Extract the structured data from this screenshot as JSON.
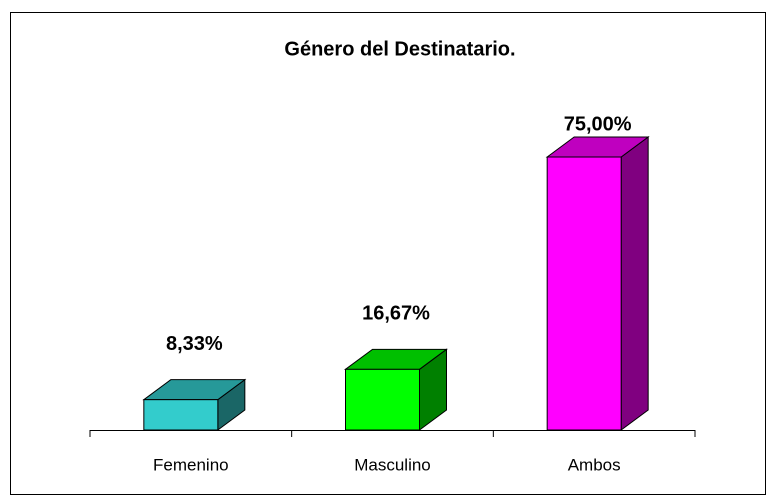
{
  "chart_data": {
    "type": "bar3d",
    "title": "Género del Destinatario.",
    "categories": [
      "Femenino",
      "Masculino",
      "Ambos"
    ],
    "values": [
      8.33,
      16.67,
      75
    ],
    "value_labels": [
      "8,33%",
      "16,67%",
      "75,00%"
    ],
    "colors": [
      "#33cccc",
      "#00ff00",
      "#ff00ff"
    ]
  }
}
